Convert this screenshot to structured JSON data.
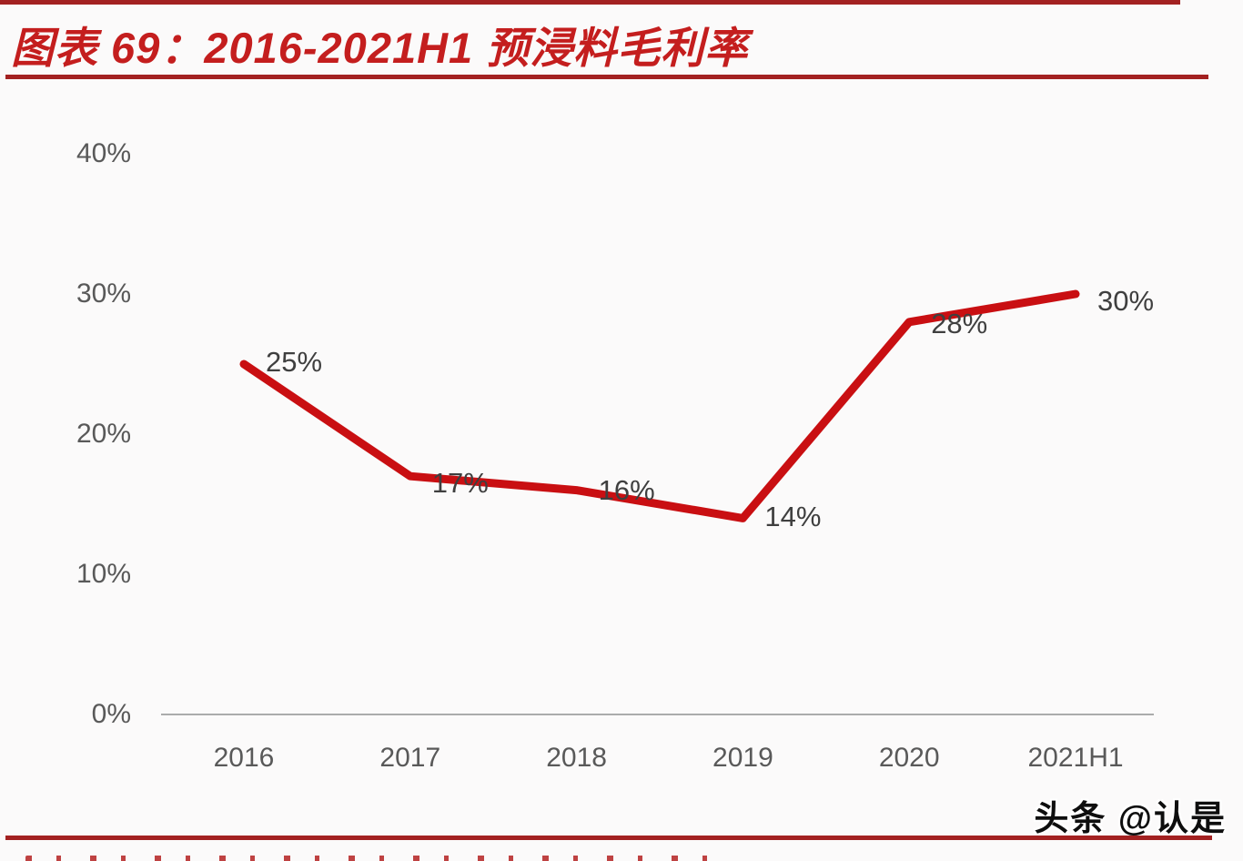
{
  "page": {
    "title": "图表 69：2016-2021H1 预浸料毛利率",
    "watermark": "头条 @认是"
  },
  "chart_data": {
    "type": "line",
    "title": "2016-2021H1 预浸料毛利率",
    "categories": [
      "2016",
      "2017",
      "2018",
      "2019",
      "2020",
      "2021H1"
    ],
    "values": [
      25,
      17,
      16,
      14,
      28,
      30
    ],
    "data_labels": [
      "25%",
      "17%",
      "16%",
      "14%",
      "28%",
      "30%"
    ],
    "unit": "%",
    "yticks": [
      "0%",
      "10%",
      "20%",
      "30%",
      "40%"
    ],
    "ytick_values": [
      0,
      10,
      20,
      30,
      40
    ],
    "ylim": [
      0,
      40
    ],
    "xlabel": "",
    "ylabel": "",
    "grid": false,
    "legend": false,
    "line_color": "#c90f12",
    "axis_line_color": "#ababab",
    "tick_label_color": "#595959",
    "data_label_color": "#3f3f3f",
    "label_dx": 24,
    "label_dy": [
      -2,
      8,
      0,
      -1,
      2,
      8
    ]
  },
  "colors": {
    "title_red": "#c41e1e",
    "rule_red": "#a32121",
    "background": "#fbfafa"
  }
}
